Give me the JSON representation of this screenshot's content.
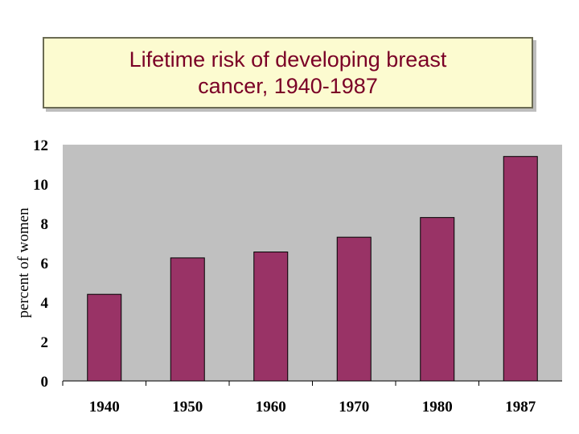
{
  "colors": {
    "plot_bg": "#c0c0c0",
    "bar": "#993366",
    "title_bg": "#fcfbd0",
    "title_text": "#7a0026"
  },
  "chart_data": {
    "type": "bar",
    "title": "Lifetime risk of developing breast\ncancer, 1940-1987",
    "xlabel": "",
    "ylabel": "percent of women",
    "categories": [
      "1940",
      "1950",
      "1960",
      "1970",
      "1980",
      "1987"
    ],
    "values": [
      4.4,
      6.25,
      6.55,
      7.3,
      8.3,
      11.4
    ],
    "ylim": [
      0,
      12
    ],
    "yticks": [
      0,
      2,
      4,
      6,
      8,
      10,
      12
    ],
    "grid": false,
    "legend": "none"
  }
}
